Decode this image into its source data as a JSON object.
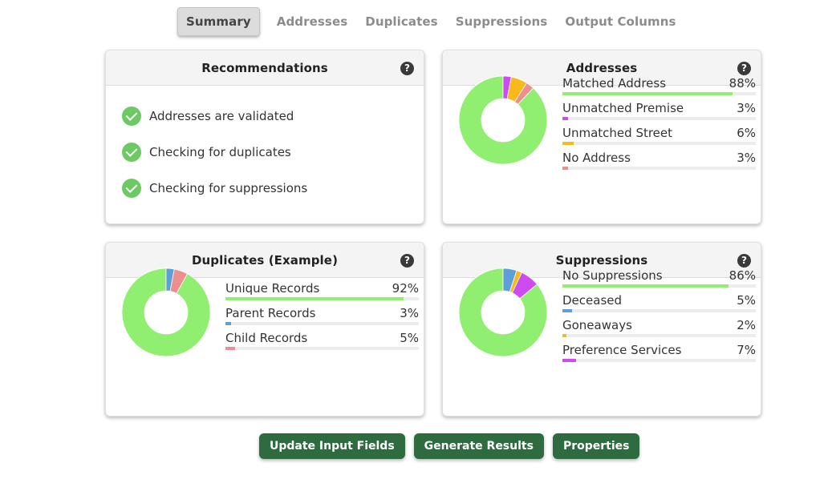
{
  "tabs": [
    {
      "label": "Summary",
      "active": true
    },
    {
      "label": "Addresses",
      "active": false
    },
    {
      "label": "Duplicates",
      "active": false
    },
    {
      "label": "Suppressions",
      "active": false
    },
    {
      "label": "Output Columns",
      "active": false
    }
  ],
  "help_glyph": "?",
  "recommendations": {
    "title": "Recommendations",
    "items": [
      "Addresses are validated",
      "Checking for duplicates",
      "Checking for suppressions"
    ]
  },
  "addresses": {
    "title": "Addresses",
    "stats": [
      {
        "label": "Matched Address",
        "value": "88%",
        "fraction": 0.88,
        "color": "#90ee71"
      },
      {
        "label": "Unmatched Premise",
        "value": "3%",
        "fraction": 0.03,
        "color": "#cc4cf0"
      },
      {
        "label": "Unmatched Street",
        "value": "6%",
        "fraction": 0.06,
        "color": "#f7ba1a"
      },
      {
        "label": "No Address",
        "value": "3%",
        "fraction": 0.03,
        "color": "#ee8f8f"
      }
    ]
  },
  "duplicates": {
    "title": "Duplicates (Example)",
    "stats": [
      {
        "label": "Unique Records",
        "value": "92%",
        "fraction": 0.92,
        "color": "#90ee71"
      },
      {
        "label": "Parent Records",
        "value": "3%",
        "fraction": 0.03,
        "color": "#5e9fd9"
      },
      {
        "label": "Child Records",
        "value": "5%",
        "fraction": 0.05,
        "color": "#ee8f8f"
      }
    ]
  },
  "suppressions": {
    "title": "Suppressions",
    "stats": [
      {
        "label": "No Suppressions",
        "value": "86%",
        "fraction": 0.86,
        "color": "#90ee71"
      },
      {
        "label": "Deceased",
        "value": "5%",
        "fraction": 0.05,
        "color": "#5e9fd9"
      },
      {
        "label": "Goneaways",
        "value": "2%",
        "fraction": 0.02,
        "color": "#f7ba1a"
      },
      {
        "label": "Preference Services",
        "value": "7%",
        "fraction": 0.07,
        "color": "#cc4cf0"
      }
    ]
  },
  "buttons": {
    "update_label": "Update Input Fields",
    "generate_label": "Generate Results",
    "properties_label": "Properties"
  },
  "icons": {
    "help": "help-icon",
    "check": "check-circle-icon"
  }
}
